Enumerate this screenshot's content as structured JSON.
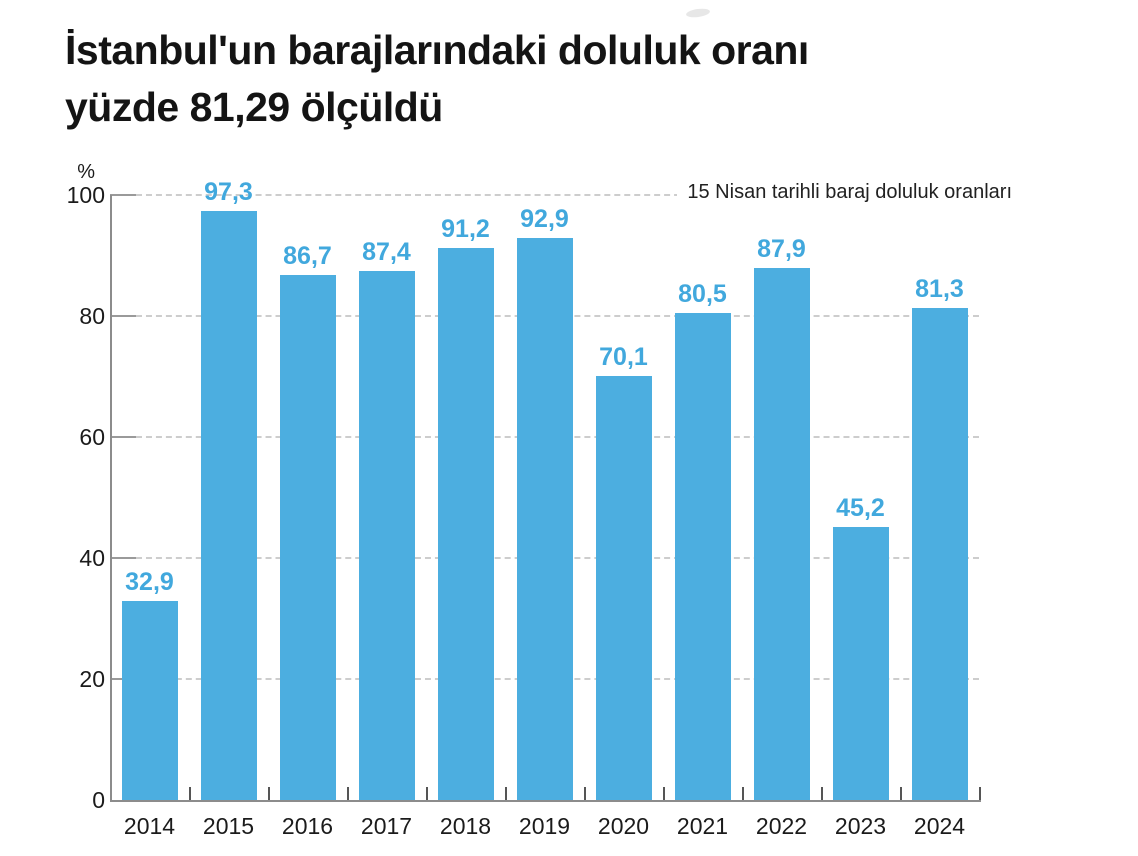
{
  "title": {
    "line1": "İstanbul'un barajlarındaki doluluk oranı",
    "line2": "yüzde 81,29 ölçüldü"
  },
  "chart_data": {
    "type": "bar",
    "title": "İstanbul'un barajlarındaki doluluk oranı yüzde 81,29 ölçüldü",
    "annotation": "15 Nisan tarihli baraj doluluk oranları",
    "ylabel_unit": "%",
    "categories": [
      "2014",
      "2015",
      "2016",
      "2017",
      "2018",
      "2019",
      "2020",
      "2021",
      "2022",
      "2023",
      "2024"
    ],
    "values": [
      32.9,
      97.3,
      86.7,
      87.4,
      91.2,
      92.9,
      70.1,
      80.5,
      87.9,
      45.2,
      81.3
    ],
    "value_labels": [
      "32,9",
      "97,3",
      "86,7",
      "87,4",
      "91,2",
      "92,9",
      "70,1",
      "80,5",
      "87,9",
      "45,2",
      "81,3"
    ],
    "ylim": [
      0,
      100
    ],
    "yticks": [
      0,
      20,
      40,
      60,
      80,
      100
    ],
    "legend": "none",
    "grid": "horizontal-dashed",
    "colors": {
      "bar": "#4CAEE0",
      "value_label": "#41A8DD",
      "axis": "#8c8c8c",
      "grid": "#cdcdcd",
      "tick_text": "#1b1b1b",
      "title_text": "#141414",
      "annotation_text": "#212121",
      "background": "#ffffff"
    }
  }
}
